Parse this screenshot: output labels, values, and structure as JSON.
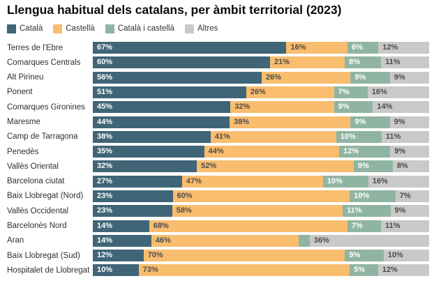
{
  "title": "Llengua habitual dels catalans, per àmbit territorial (2023)",
  "colors": {
    "catala": "#3f6577",
    "castella": "#f9bd6e",
    "catala_i_castella": "#8fb5a2",
    "altres": "#c9c9c9",
    "label_on_dark": "#ffffff",
    "label_on_light": "#4b4b4b",
    "category_text": "#2f2f2f",
    "title_text": "#0b0b0b"
  },
  "chart_data": {
    "type": "bar",
    "variant": "stacked-horizontal",
    "title": "Llengua habitual dels catalans, per àmbit territorial (2023)",
    "legend_position": "top",
    "value_suffix": "%",
    "min_label_value": 5,
    "xlim": [
      0,
      100
    ],
    "categories": [
      "Terres de l'Ebre",
      "Comarques Centrals",
      "Alt Pirineu",
      "Ponent",
      "Comarques Gironines",
      "Maresme",
      "Camp de Tarragona",
      "Penedès",
      "Vallès Oriental",
      "Barcelona ciutat",
      "Baix Llobregat (Nord)",
      "Vallès Occidental",
      "Barcelonès Nord",
      "Aran",
      "Baix Llobregat (Sud)",
      "Hospitalet de Llobregat"
    ],
    "series": [
      {
        "name": "Català",
        "color": "#3f6577",
        "text_color": "#ffffff",
        "values": [
          67,
          60,
          56,
          51,
          45,
          44,
          38,
          35,
          32,
          27,
          23,
          23,
          14,
          14,
          12,
          10
        ]
      },
      {
        "name": "Castellà",
        "color": "#f9bd6e",
        "text_color": "#4b4b4b",
        "values": [
          16,
          21,
          26,
          26,
          32,
          38,
          41,
          44,
          52,
          47,
          60,
          58,
          68,
          46,
          70,
          73
        ]
      },
      {
        "name": "Català i castellà",
        "color": "#8fb5a2",
        "text_color": "#ffffff",
        "values": [
          6,
          8,
          9,
          7,
          9,
          9,
          10,
          12,
          9,
          10,
          10,
          11,
          7,
          4,
          9,
          5
        ]
      },
      {
        "name": "Altres",
        "color": "#c9c9c9",
        "text_color": "#4b4b4b",
        "values": [
          12,
          11,
          9,
          16,
          14,
          9,
          11,
          9,
          8,
          16,
          7,
          9,
          11,
          36,
          10,
          12
        ]
      }
    ]
  }
}
